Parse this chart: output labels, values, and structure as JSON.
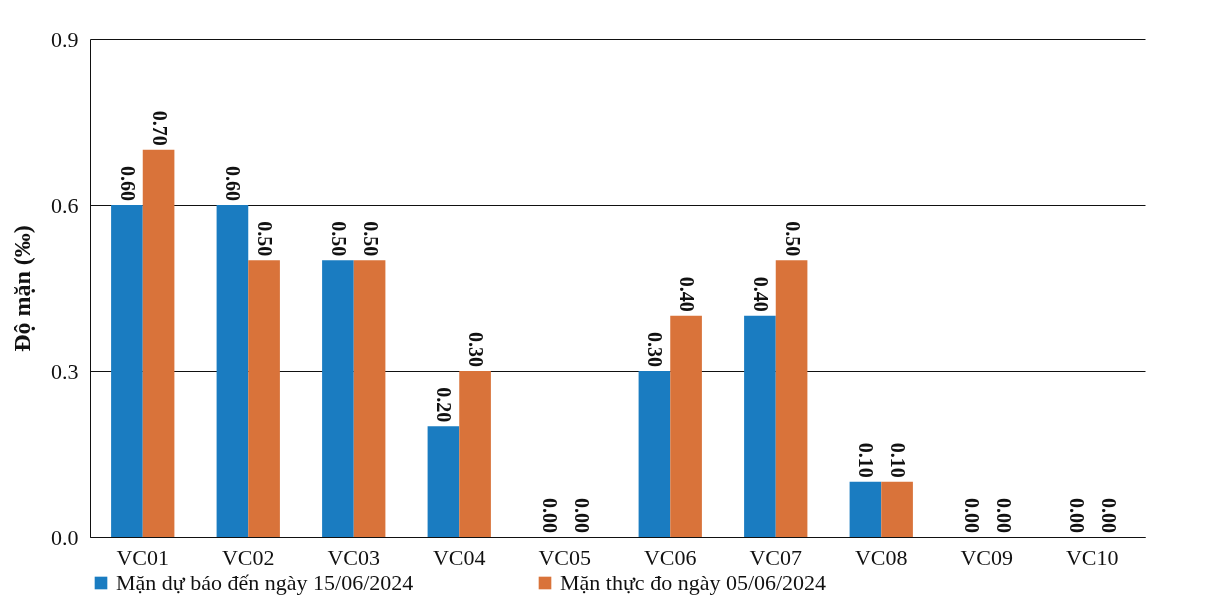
{
  "chart_data": {
    "type": "bar",
    "ylabel": "Độ mặn (‰)",
    "categories": [
      "VC01",
      "VC02",
      "VC03",
      "VC04",
      "VC05",
      "VC06",
      "VC07",
      "VC08",
      "VC09",
      "VC10"
    ],
    "series": [
      {
        "name": "Mặn dự báo đến ngày 15/06/2024",
        "color": "#1a7cc1",
        "values": [
          0.6,
          0.6,
          0.5,
          0.2,
          0,
          0.3,
          0.4,
          0.1,
          0,
          0
        ],
        "value_labels": [
          "0.60",
          "0.60",
          "0.50",
          "0.20",
          "0.00",
          "0.30",
          "0.40",
          "0.10",
          "0.00",
          "0.00"
        ]
      },
      {
        "name": "Mặn thực đo ngày 05/06/2024",
        "color": "#d9733a",
        "values": [
          0.7,
          0.5,
          0.5,
          0.3,
          0,
          0.4,
          0.5,
          0.1,
          0,
          0
        ],
        "value_labels": [
          "0.70",
          "0.50",
          "0.50",
          "0.30",
          "0.00",
          "0.40",
          "0.50",
          "0.10",
          "0.00",
          "0.00"
        ]
      }
    ],
    "ylim": [
      0,
      0.9
    ],
    "yticks": [
      {
        "value": 0,
        "label": "0.0"
      },
      {
        "value": 0.3,
        "label": "0.3"
      },
      {
        "value": 0.6,
        "label": "0.6"
      },
      {
        "value": 0.9,
        "label": "0.9"
      }
    ],
    "grid": "y",
    "legend": "bottom"
  }
}
